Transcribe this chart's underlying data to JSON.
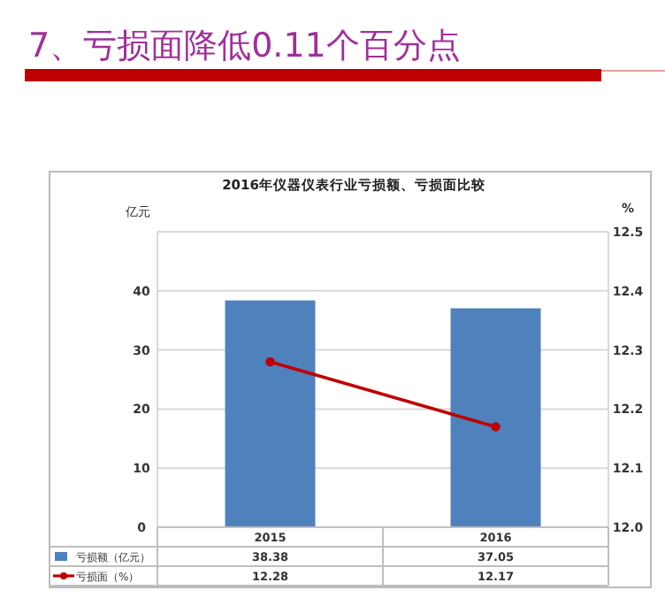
{
  "chart_data": {
    "type": "bar",
    "title": "7、亏损面降低0.11个百分点",
    "subtitle": "2016年仪器仪表行业亏损额、亏损面比较",
    "ylabel": "亿元",
    "y2label": "%",
    "categories": [
      "2015",
      "2016"
    ],
    "series": [
      {
        "name": "亏损额（亿元）",
        "color": "#4f81bd",
        "values": [
          38.38,
          37.05
        ]
      },
      {
        "name": "亏损面（%）",
        "type": "line",
        "axis": "y2",
        "color": "#c00000",
        "marker": "circle",
        "values": [
          12.28,
          12.17
        ]
      }
    ],
    "ylim": [
      0,
      50
    ],
    "yticks": [
      0,
      10,
      20,
      30,
      40,
      {
        "value": 50,
        "label": null
      }
    ],
    "y2lim": [
      12.0,
      12.5
    ],
    "y2ticks": [
      "12.0",
      12.1,
      12.2,
      12.3,
      12.4,
      12.5
    ],
    "grid": "y",
    "legend": "bottom left",
    "data_labels": true
  }
}
